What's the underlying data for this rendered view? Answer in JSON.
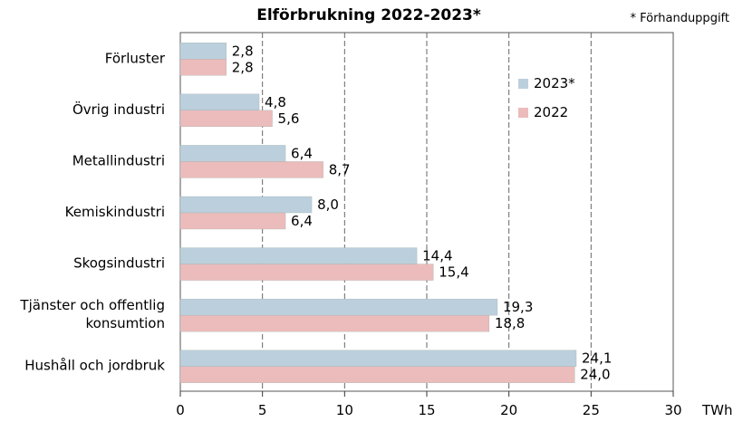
{
  "chart_data": {
    "type": "bar",
    "orientation": "horizontal",
    "title": "Elförbrukning 2022-2023*",
    "footnote": "* Förhanduppgift",
    "xlabel": "TWh",
    "categories": [
      "Förluster",
      "Övrig industri",
      "Metallindustri",
      "Kemiskindustri",
      "Skogsindustri",
      "Tjänster och offentlig konsumtion",
      "Hushåll och jordbruk"
    ],
    "category_lines": [
      [
        "Förluster"
      ],
      [
        "Övrig industri"
      ],
      [
        "Metallindustri"
      ],
      [
        "Kemiskindustri"
      ],
      [
        "Skogsindustri"
      ],
      [
        "Tjänster och offentlig",
        "konsumtion"
      ],
      [
        "Hushåll och jordbruk"
      ]
    ],
    "series": [
      {
        "name": "2023*",
        "color": "#bccfdc",
        "values": [
          2.8,
          4.8,
          6.4,
          8.0,
          14.4,
          19.3,
          24.1
        ],
        "labels": [
          "2,8",
          "4,8",
          "6,4",
          "8,0",
          "14,4",
          "19,3",
          "24,1"
        ]
      },
      {
        "name": "2022",
        "color": "#ebbcbb",
        "values": [
          2.8,
          5.6,
          8.7,
          6.4,
          15.4,
          18.8,
          24.0
        ],
        "labels": [
          "2,8",
          "5,6",
          "8,7",
          "6,4",
          "15,4",
          "18,8",
          "24,0"
        ]
      }
    ],
    "xlim": [
      0,
      30
    ],
    "xticks": [
      0,
      5,
      10,
      15,
      20,
      25,
      30
    ],
    "grid": "vertical dashed",
    "legend_position": "top-right"
  }
}
